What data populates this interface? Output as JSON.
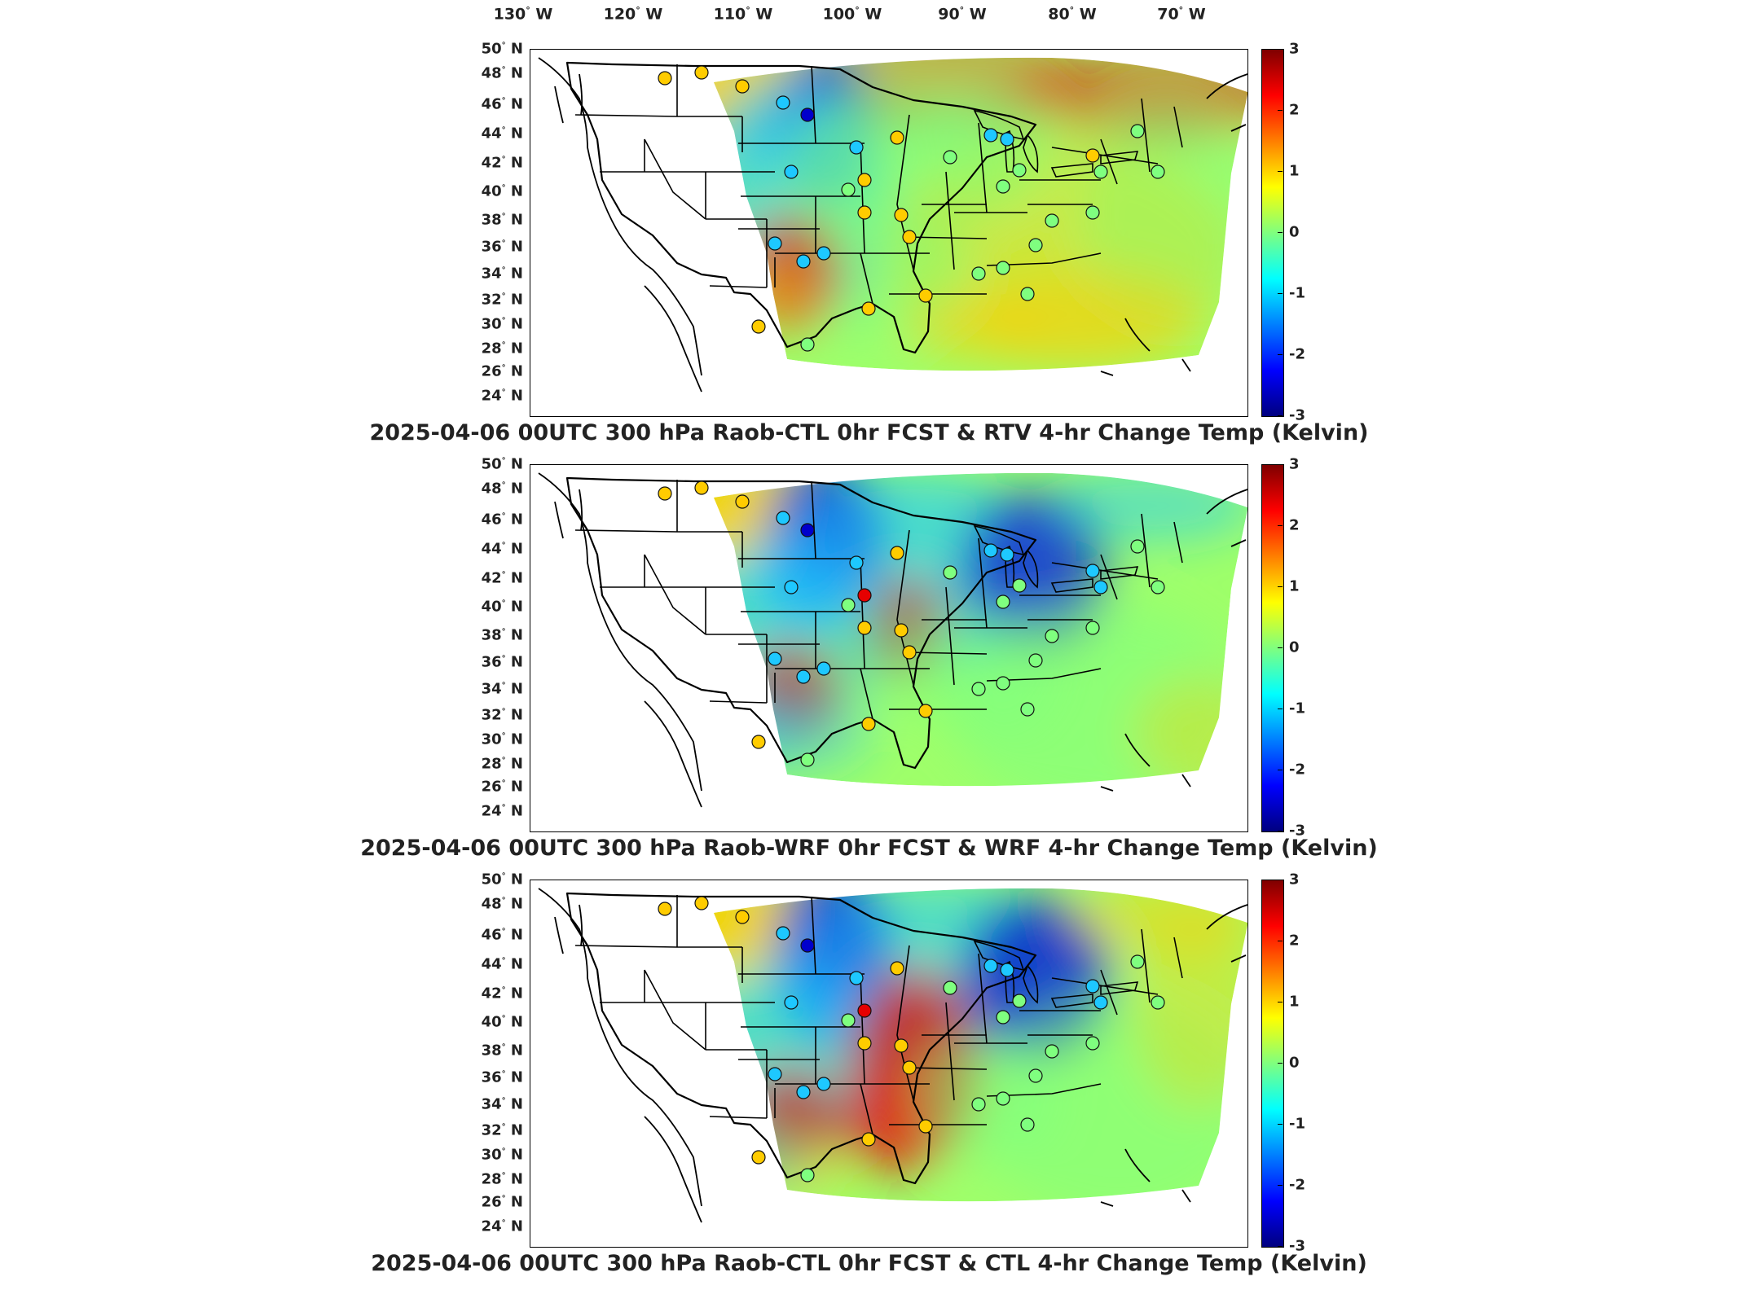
{
  "lon_labels": [
    "130",
    "120",
    "110",
    "100",
    "90",
    "80",
    "70"
  ],
  "lon_suffix": "W",
  "lat_labels": [
    "50",
    "48",
    "46",
    "44",
    "42",
    "40",
    "38",
    "36",
    "34",
    "32",
    "30",
    "28",
    "26",
    "24"
  ],
  "lat_suffix": "N",
  "degree_symbol": "°",
  "colorbar": {
    "ticks": [
      "3",
      "2",
      "1",
      "0",
      "-1",
      "-2",
      "-3"
    ],
    "min": -3,
    "max": 3,
    "colormap": "jet"
  },
  "colors": {
    "cold": "#0000cc",
    "cool": "#1ec8ff",
    "neutral": "#7fff7f",
    "warm": "#ffcc00",
    "hot": "#e60000"
  },
  "panels": [
    {
      "title": "2025-04-06 00UTC 300 hPa Raob-CTL 0hr FCST & RTV 4-hr Change Temp (Kelvin)"
    },
    {
      "title": "2025-04-06 00UTC 300 hPa Raob-WRF 0hr FCST & WRF 4-hr Change Temp (Kelvin)"
    },
    {
      "title": "2025-04-06 00UTC 300 hPa Raob-CTL 0hr FCST & CTL 4-hr Change Temp (Kelvin)"
    }
  ]
}
